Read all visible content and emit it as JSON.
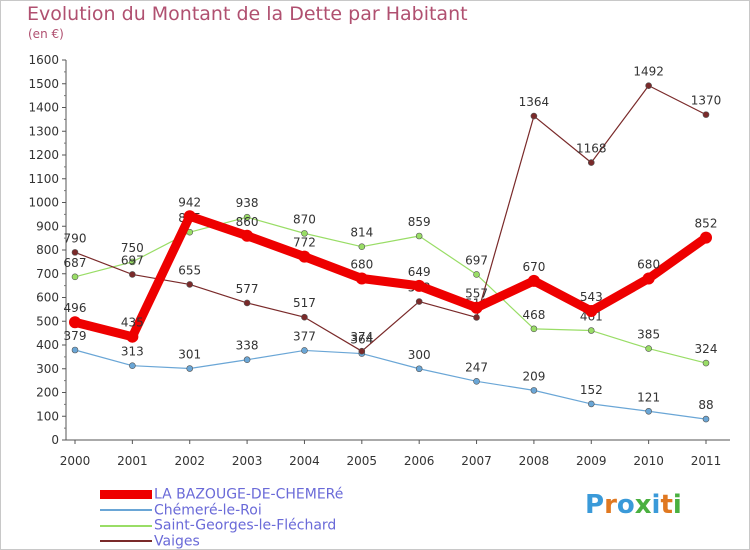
{
  "header": {
    "title": "Evolution du Montant de la Dette par Habitant",
    "subtitle": "(en €)"
  },
  "logo": {
    "text": "Proxiti",
    "letter_colors": [
      "#3a9ad9",
      "#e07820",
      "#3a9ad9",
      "#4ab040",
      "#3a9ad9",
      "#e07820",
      "#4ab040"
    ]
  },
  "chart_data": {
    "type": "line",
    "title": "Evolution du Montant de la Dette par Habitant",
    "ylabel": "(en €)",
    "xlabel": "",
    "ylim": [
      0,
      1600
    ],
    "ytick_step": 100,
    "grid": false,
    "legend_position": "bottom-left",
    "x": [
      "2000",
      "2001",
      "2002",
      "2003",
      "2004",
      "2005",
      "2006",
      "2007",
      "2008",
      "2009",
      "2010",
      "2011"
    ],
    "series": [
      {
        "name": "LA BAZOUGE-DE-CHEMERé",
        "color": "#ee0000",
        "style": "thick",
        "values": [
          496,
          435,
          942,
          860,
          772,
          680,
          649,
          557,
          670,
          543,
          680,
          852
        ]
      },
      {
        "name": "Chémeré-le-Roi",
        "color": "#6aa6d6",
        "style": "thin",
        "values": [
          379,
          313,
          301,
          338,
          377,
          364,
          300,
          247,
          209,
          152,
          121,
          88
        ]
      },
      {
        "name": "Saint-Georges-le-Fléchard",
        "color": "#99dd66",
        "style": "thin",
        "values": [
          687,
          750,
          875,
          938,
          870,
          814,
          859,
          697,
          468,
          461,
          385,
          324
        ]
      },
      {
        "name": "Vaiges",
        "color": "#7a2a2a",
        "style": "thin",
        "values": [
          790,
          697,
          655,
          577,
          517,
          374,
          583,
          516,
          1364,
          1168,
          1492,
          1370
        ]
      }
    ]
  }
}
